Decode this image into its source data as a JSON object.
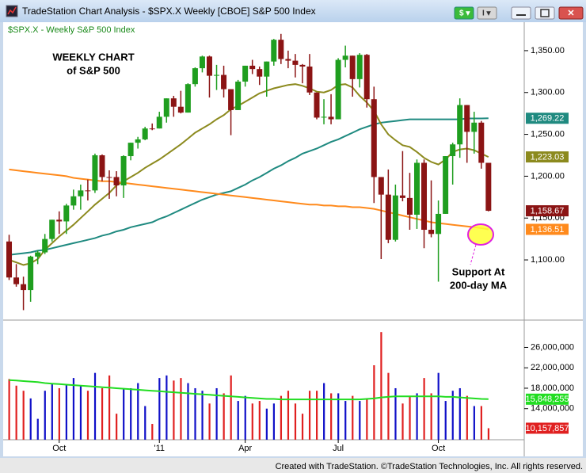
{
  "window": {
    "title": "TradeStation Chart Analysis - $SPX.X Weekly [CBOE] S&P 500 Index"
  },
  "footer": "Created with TradeStation. ©TradeStation Technologies, Inc. All rights reserved.",
  "chart_data": [
    {
      "type": "candlestick",
      "subtitle": "$SPX.X - Weekly  S&P 500 Index",
      "annotations": [
        "WEEKLY CHART",
        "of S&P 500",
        "Support At",
        "200-day MA"
      ],
      "up_color": "#1f9e1f",
      "down_color": "#8b1414",
      "open": [
        1122,
        1079,
        1071,
        1064,
        1104,
        1109,
        1125,
        1148,
        1146,
        1165,
        1176,
        1183,
        1183,
        1225,
        1199,
        1199,
        1189,
        1224,
        1240,
        1244,
        1257,
        1257,
        1271,
        1293,
        1283,
        1276,
        1310,
        1329,
        1343,
        1320,
        1321,
        1304,
        1279,
        1313,
        1332,
        1328,
        1319,
        1337,
        1363,
        1340,
        1338,
        1333,
        1331,
        1300,
        1270,
        1271,
        1268,
        1339,
        1344,
        1316,
        1345,
        1292,
        1199,
        1178,
        1124,
        1177,
        1174,
        1154,
        1216,
        1136,
        1131,
        1155,
        1224,
        1238,
        1285,
        1253,
        1264,
        1216
      ],
      "high": [
        1130,
        1095,
        1080,
        1105,
        1111,
        1131,
        1148,
        1158,
        1167,
        1184,
        1190,
        1196,
        1227,
        1226,
        1207,
        1206,
        1225,
        1240,
        1247,
        1259,
        1263,
        1277,
        1293,
        1296,
        1302,
        1311,
        1330,
        1344,
        1344,
        1333,
        1332,
        1304,
        1315,
        1332,
        1339,
        1331,
        1337,
        1364,
        1370,
        1350,
        1346,
        1334,
        1346,
        1300,
        1292,
        1298,
        1341,
        1356,
        1344,
        1347,
        1346,
        1307,
        1199,
        1208,
        1190,
        1230,
        1204,
        1220,
        1220,
        1195,
        1171,
        1224,
        1240,
        1293,
        1285,
        1277,
        1266,
        1216
      ],
      "low": [
        1076,
        1068,
        1040,
        1050,
        1095,
        1107,
        1122,
        1131,
        1131,
        1160,
        1160,
        1171,
        1180,
        1194,
        1173,
        1176,
        1174,
        1219,
        1233,
        1243,
        1255,
        1257,
        1264,
        1271,
        1275,
        1276,
        1307,
        1324,
        1294,
        1303,
        1294,
        1249,
        1279,
        1307,
        1322,
        1309,
        1295,
        1332,
        1334,
        1329,
        1318,
        1311,
        1297,
        1268,
        1262,
        1262,
        1268,
        1330,
        1295,
        1306,
        1282,
        1168,
        1101,
        1120,
        1122,
        1170,
        1136,
        1137,
        1114,
        1127,
        1074,
        1155,
        1190,
        1222,
        1216,
        1227,
        1209,
        1158
      ],
      "close": [
        1079,
        1071,
        1064,
        1104,
        1109,
        1125,
        1148,
        1146,
        1165,
        1176,
        1183,
        1183,
        1225,
        1199,
        1199,
        1189,
        1224,
        1240,
        1244,
        1257,
        1257,
        1271,
        1293,
        1283,
        1276,
        1310,
        1329,
        1343,
        1320,
        1321,
        1304,
        1279,
        1313,
        1332,
        1328,
        1319,
        1337,
        1363,
        1340,
        1338,
        1333,
        1331,
        1300,
        1270,
        1271,
        1268,
        1339,
        1344,
        1316,
        1345,
        1292,
        1199,
        1178,
        1124,
        1177,
        1174,
        1154,
        1216,
        1136,
        1131,
        1155,
        1224,
        1238,
        1285,
        1253,
        1264,
        1216,
        1158.67
      ],
      "close_label": "1,158.67",
      "lines": [
        {
          "color": "#1f8a80",
          "last_label": "1,269.22",
          "values": [
            1106,
            1107,
            1108,
            1109,
            1111,
            1112,
            1114,
            1116,
            1118,
            1120,
            1122,
            1124,
            1126,
            1129,
            1131,
            1134,
            1136,
            1139,
            1141,
            1143,
            1145,
            1149,
            1152,
            1156,
            1160,
            1164,
            1168,
            1172,
            1175,
            1178,
            1180,
            1182,
            1186,
            1190,
            1195,
            1199,
            1204,
            1209,
            1213,
            1218,
            1222,
            1227,
            1230,
            1233,
            1237,
            1241,
            1244,
            1248,
            1252,
            1256,
            1259,
            1262,
            1264,
            1265,
            1266,
            1267,
            1268,
            1268,
            1268,
            1268,
            1268,
            1268,
            1268,
            1268,
            1269,
            1269,
            1269,
            1269.22
          ]
        },
        {
          "color": "#8c8a1e",
          "last_label": "1,223.03",
          "values": [
            1100,
            1097,
            1094,
            1096,
            1101,
            1112,
            1120,
            1128,
            1135,
            1142,
            1150,
            1158,
            1166,
            1173,
            1180,
            1189,
            1194,
            1199,
            1204,
            1210,
            1215,
            1220,
            1226,
            1232,
            1238,
            1245,
            1252,
            1257,
            1262,
            1268,
            1273,
            1280,
            1284,
            1289,
            1294,
            1299,
            1302,
            1305,
            1307,
            1309,
            1310,
            1308,
            1305,
            1301,
            1300,
            1303,
            1309,
            1310,
            1306,
            1296,
            1288,
            1278,
            1262,
            1250,
            1243,
            1237,
            1235,
            1229,
            1222,
            1217,
            1214,
            1220,
            1229,
            1232,
            1233,
            1231,
            1227,
            1223.03
          ]
        },
        {
          "color": "#ff8a1c",
          "last_label": "1,136.51",
          "values": [
            1208,
            1207,
            1206,
            1205,
            1204,
            1203,
            1202,
            1201,
            1200,
            1198,
            1197,
            1196,
            1195,
            1194,
            1194,
            1193,
            1192,
            1191,
            1190,
            1189,
            1188,
            1187,
            1186,
            1185,
            1184,
            1183,
            1182,
            1181,
            1180,
            1179,
            1178,
            1177,
            1176,
            1175,
            1174,
            1173,
            1172,
            1171,
            1170,
            1169,
            1168,
            1167,
            1166,
            1166,
            1165,
            1165,
            1164,
            1164,
            1163,
            1163,
            1162,
            1161,
            1159,
            1157,
            1155,
            1153,
            1151,
            1149,
            1147,
            1145,
            1144,
            1143,
            1142,
            1141,
            1140,
            1139,
            1138,
            1136.51
          ]
        }
      ],
      "xlim": [
        -0.5,
        72
      ],
      "ylim": [
        1030,
        1384
      ],
      "yticks": [
        {
          "value": 1350,
          "label": "1,350.00"
        },
        {
          "value": 1300,
          "label": "1,300.00"
        },
        {
          "value": 1250,
          "label": "1,250.00"
        },
        {
          "value": 1200,
          "label": "1,200.00"
        },
        {
          "value": 1150,
          "label": "1,150.00"
        },
        {
          "value": 1100,
          "label": "1,100.00"
        }
      ]
    },
    {
      "type": "bar",
      "up_color": "#1010c8",
      "down_color": "#e02020",
      "values": [
        19800000,
        18500000,
        17500000,
        16000000,
        12000000,
        17500000,
        19000000,
        18000000,
        18800000,
        20000000,
        18500000,
        17500000,
        21000000,
        18000000,
        20500000,
        13000000,
        18000000,
        18000000,
        19000000,
        14500000,
        11000000,
        20000000,
        20500000,
        19500000,
        20000000,
        19000000,
        18000000,
        17500000,
        15000000,
        18000000,
        17000000,
        20500000,
        15500000,
        16500000,
        15000000,
        15500000,
        14000000,
        15000000,
        16500000,
        17500000,
        15000000,
        13000000,
        17500000,
        17500000,
        19000000,
        17000000,
        17000000,
        15500000,
        16500000,
        15500000,
        16000000,
        22500000,
        29000000,
        21000000,
        18000000,
        15000000,
        16500000,
        17000000,
        20000000,
        17000000,
        21000000,
        15500000,
        17500000,
        18000000,
        16500000,
        14500000,
        14500000,
        10157857
      ],
      "last_label": "10,157,857",
      "lines": [
        {
          "color": "#22dd22",
          "last_label": "15,848,255",
          "values": [
            19600000,
            19500000,
            19400000,
            19300000,
            19200000,
            19000000,
            18900000,
            18800000,
            18700000,
            18600000,
            18500000,
            18400000,
            18300000,
            18200000,
            18100000,
            18000000,
            17900000,
            17800000,
            17700000,
            17600000,
            17500000,
            17400000,
            17300000,
            17200000,
            17100000,
            17000000,
            16900000,
            16800000,
            16700000,
            16600000,
            16500000,
            16400000,
            16300000,
            16200000,
            16100000,
            16000000,
            15900000,
            15900000,
            15800000,
            15800000,
            15800000,
            15800000,
            15800000,
            15800000,
            15800000,
            15800000,
            15800000,
            15800000,
            15800000,
            15800000,
            15900000,
            16000000,
            16200000,
            16300000,
            16400000,
            16400000,
            16400000,
            16400000,
            16400000,
            16400000,
            16400000,
            16300000,
            16300000,
            16200000,
            16100000,
            16000000,
            15900000,
            15848255
          ]
        }
      ],
      "xlim": [
        -0.5,
        72
      ],
      "xticks": [
        {
          "value": 7,
          "label": "Oct"
        },
        {
          "value": 21,
          "label": "'11"
        },
        {
          "value": 33,
          "label": "Apr"
        },
        {
          "value": 46,
          "label": "Jul"
        },
        {
          "value": 60,
          "label": "Oct"
        }
      ],
      "ylim": [
        7900000,
        31200000
      ],
      "yticks": [
        {
          "value": 26000000,
          "label": "26,000,000"
        },
        {
          "value": 22000000,
          "label": "22,000,000"
        },
        {
          "value": 18000000,
          "label": "18,000,000"
        },
        {
          "value": 14000000,
          "label": "14,000,000"
        }
      ]
    }
  ]
}
